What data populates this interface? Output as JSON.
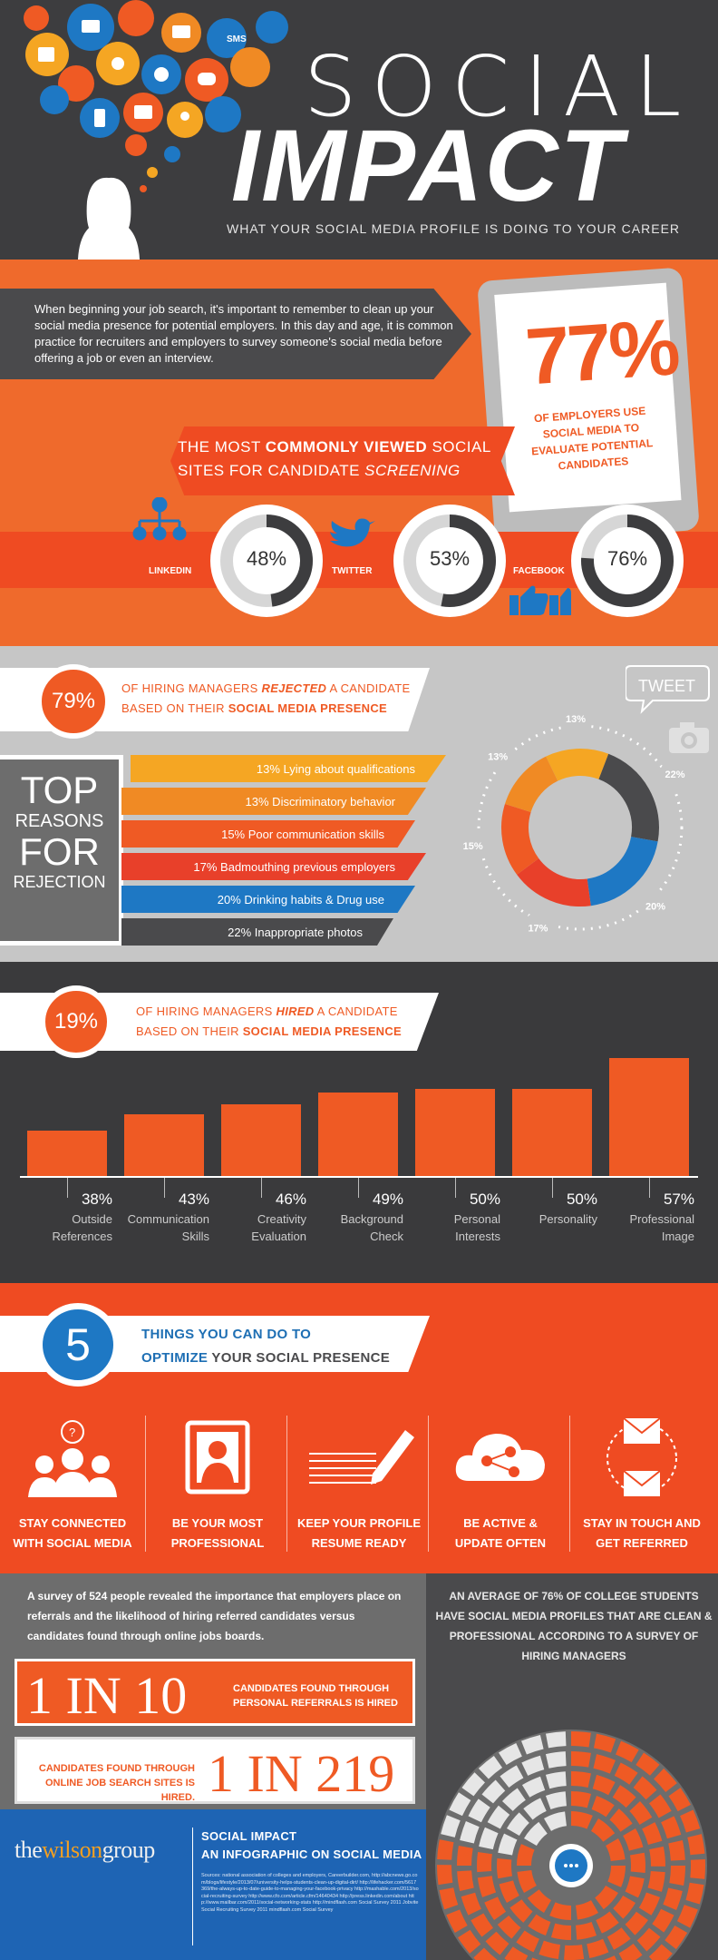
{
  "header": {
    "title_line1": "SOCIAL",
    "title_line2": "IMPACT",
    "subtitle": "WHAT YOUR SOCIAL MEDIA PROFILE IS DOING TO YOUR CAREER",
    "bubble_icons": [
      "mail-icon",
      "rss-icon",
      "video-icon",
      "sms-icon",
      "search-icon",
      "cart-icon",
      "chat-icon",
      "twitter-icon",
      "location-icon",
      "music-icon",
      "globe-icon",
      "phone-icon",
      "camera-icon",
      "user-icon",
      "heart-icon",
      "cloud-icon"
    ],
    "sms_label": "SMS"
  },
  "intro": {
    "text": "When beginning your job search, it's important to remember to clean up your social media presence for potential employers. In this day and age, it is common practice for recruiters and employers to survey someone's social media before offering a job or even an interview."
  },
  "stat77": {
    "value": "77%",
    "caption": "OF EMPLOYERS USE SOCIAL MEDIA TO EVALUATE POTENTIAL CANDIDATES"
  },
  "viewed": {
    "pre": "THE MOST ",
    "bold": "COMMONLY VIEWED",
    "post": " SOCIAL SITES FOR CANDIDATE ",
    "italic": "SCREENING",
    "sites": [
      {
        "label": "LINKEDIN",
        "value": "48%",
        "fraction": 0.48,
        "icon": "linkedin-network-icon"
      },
      {
        "label": "TWITTER",
        "value": "53%",
        "fraction": 0.53,
        "icon": "twitter-bird-icon"
      },
      {
        "label": "FACEBOOK",
        "value": "76%",
        "fraction": 0.76,
        "icon": "thumbs-up-icon"
      }
    ]
  },
  "rejected": {
    "value": "79%",
    "pre": "OF HIRING MANAGERS ",
    "em": "REJECTED",
    "mid": " A CANDIDATE",
    "line2_pre": "BASED ON THEIR ",
    "line2_bold": "SOCIAL MEDIA PRESENCE",
    "tweet_label": "TWEET"
  },
  "top_reasons": {
    "title_line1": "TOP",
    "title_line2": "REASONS",
    "title_line3": "FOR",
    "title_line4": "REJECTION",
    "items": [
      {
        "label": "13% Lying about qualifications",
        "color": "#f5a623"
      },
      {
        "label": "13% Discriminatory behavior",
        "color": "#f08a24"
      },
      {
        "label": "15% Poor communication skills",
        "color": "#ef5a24"
      },
      {
        "label": "17% Badmouthing previous employers",
        "color": "#e8402a"
      },
      {
        "label": "20% Drinking habits & Drug use",
        "color": "#1e78c4"
      },
      {
        "label": "22% Inappropriate photos",
        "color": "#4a4a4c"
      }
    ],
    "donut": [
      {
        "label": "13%",
        "value": 13,
        "color": "#f5a623"
      },
      {
        "label": "22%",
        "value": 22,
        "color": "#4a4a4c"
      },
      {
        "label": "20%",
        "value": 20,
        "color": "#1e78c4"
      },
      {
        "label": "17%",
        "value": 17,
        "color": "#e8402a"
      },
      {
        "label": "15%",
        "value": 15,
        "color": "#ef5a24"
      },
      {
        "label": "13%",
        "value": 13,
        "color": "#f08a24"
      }
    ]
  },
  "hired": {
    "value": "19%",
    "pre": "OF HIRING MANAGERS ",
    "em": "HIRED",
    "mid": " A CANDIDATE",
    "line2_pre": "BASED ON THEIR ",
    "line2_bold": "SOCIAL MEDIA PRESENCE"
  },
  "chart_data": {
    "type": "bar",
    "categories": [
      "Outside References",
      "Communication Skills",
      "Creativity Evaluation",
      "Background Check",
      "Personal Interests",
      "Personality",
      "Professional Image"
    ],
    "labels_line1": [
      "Outside",
      "Communication",
      "Creativity",
      "Background",
      "Personal",
      "Personality",
      "Professional"
    ],
    "labels_line2": [
      "References",
      "Skills",
      "Evaluation",
      "Check",
      "Interests",
      "",
      "Image"
    ],
    "value_labels": [
      "38%",
      "43%",
      "46%",
      "49%",
      "50%",
      "50%",
      "57%"
    ],
    "values": [
      38,
      43,
      46,
      49,
      50,
      50,
      57
    ],
    "title": "",
    "xlabel": "",
    "ylabel": ""
  },
  "optimize": {
    "number": "5",
    "line1": "THINGS YOU CAN DO TO",
    "line2_bold": "OPTIMIZE",
    "line2_rest": " YOUR SOCIAL PRESENCE",
    "tips": [
      {
        "line1": "STAY CONNECTED",
        "line2": "WITH SOCIAL MEDIA",
        "icon": "people-group-icon"
      },
      {
        "line1": "BE YOUR MOST",
        "line2": "PROFESSIONAL",
        "icon": "profile-portrait-icon"
      },
      {
        "line1": "KEEP YOUR PROFILE",
        "line2": "RESUME READY",
        "icon": "pencil-resume-icon"
      },
      {
        "line1": "BE ACTIVE &",
        "line2": "UPDATE OFTEN",
        "icon": "cloud-network-icon"
      },
      {
        "line1": "STAY IN TOUCH AND",
        "line2": "GET REFERRED",
        "icon": "envelopes-icon"
      }
    ]
  },
  "referrals": {
    "survey": "A survey of 524 people revealed the importance that employers place on referrals and the likelihood of hiring referred candidates versus candidates found through online jobs boards.",
    "stat1_big": "1 IN 10",
    "stat1_text": "CANDIDATES FOUND THROUGH PERSONAL REFERRALS IS HIRED",
    "stat2_text": "CANDIDATES FOUND THROUGH ONLINE JOB SEARCH SITES IS HIRED.",
    "stat2_big": "1 IN 219"
  },
  "college": {
    "text": "AN AVERAGE OF 76% OF COLLEGE STUDENTS HAVE SOCIAL MEDIA PROFILES THAT ARE CLEAN & PROFESSIONAL ACCORDING TO A SURVEY OF HIRING MANAGERS",
    "fraction": 0.76,
    "icon": "chat-bubble-icon"
  },
  "footer": {
    "logo_pre": "the",
    "logo_mid": "wilson",
    "logo_post": "group",
    "title": "SOCIAL IMPACT",
    "subtitle": "AN INFOGRAPHIC ON SOCIAL MEDIA",
    "sources": "Sources: national association of colleges and employers, Careerbuilder.com, http://abcnews.go.com/blogs/lifestyle/2013/07/university-helps-students-clean-up-digital-dirt/ http://lifehacker.com/5617369/the-always-up-to-date-guide-to-managing-your-facebook-privacy http://mashable.com/2013/social-recruiting-survey http://www.cfo.com/article.cfm/14640434 http://press.linkedin.com/about http://www.mailbar.com/2011/social-networking-stats http://mindflash.com Social Survey 2011 Jobvite Social Recruiting Survey 2011 mindflash.com Social Survey"
  }
}
